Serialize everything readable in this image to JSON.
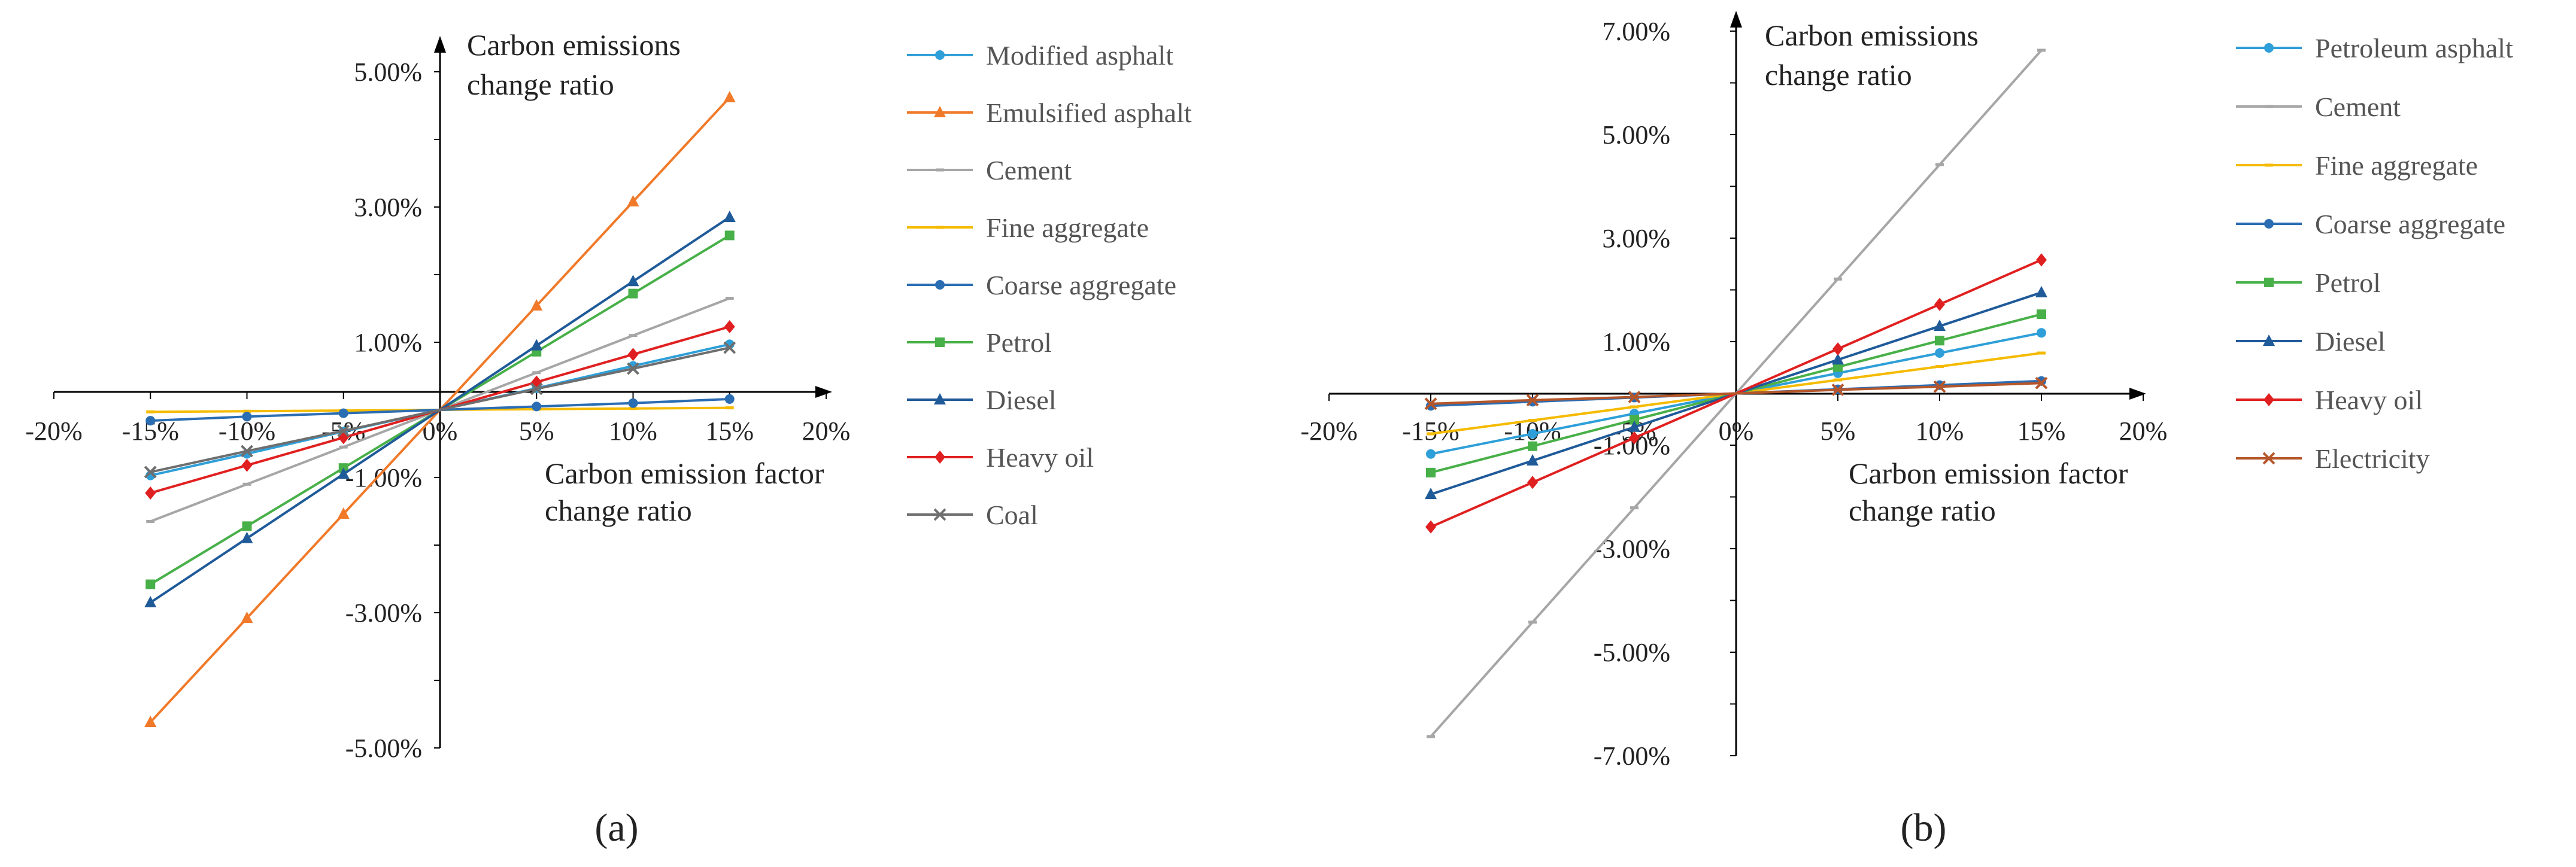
{
  "chart_data": [
    {
      "panel": "a",
      "type": "line",
      "panel_label": "(a)",
      "x": [
        -15,
        -10,
        -5,
        0,
        5,
        10,
        15
      ],
      "x_tick_labels": [
        "-20%",
        "-15%",
        "-10%",
        "-5%",
        "0%",
        "5%",
        "10%",
        "15%",
        "20%"
      ],
      "y_tick_labels": [
        "5.00%",
        "3.00%",
        "1.00%",
        "-1.00%",
        "-3.00%",
        "-5.00%"
      ],
      "xlim": [
        -20,
        20
      ],
      "ylim": [
        -5,
        5
      ],
      "xlabel": [
        "Carbon emission factor",
        "change ratio"
      ],
      "ylabel": [
        "Carbon emissions",
        "change ratio"
      ],
      "series": [
        {
          "name": "Modified asphalt",
          "color": "#2e9fd8",
          "marker": "circle",
          "values": [
            -0.97,
            -0.65,
            -0.32,
            0,
            0.32,
            0.65,
            0.97
          ]
        },
        {
          "name": "Emulsified asphalt",
          "color": "#f07a2a",
          "marker": "triangle",
          "values": [
            -4.62,
            -3.08,
            -1.54,
            0,
            1.54,
            3.08,
            4.62
          ]
        },
        {
          "name": "Cement",
          "color": "#a6a6a6",
          "marker": "dash",
          "values": [
            -1.65,
            -1.1,
            -0.55,
            0,
            0.55,
            1.1,
            1.65
          ]
        },
        {
          "name": "Fine aggregate",
          "color": "#f5bb00",
          "marker": "dash",
          "values": [
            -0.03,
            -0.02,
            -0.01,
            0,
            0.01,
            0.02,
            0.03
          ]
        },
        {
          "name": "Coarse aggregate",
          "color": "#2b6db3",
          "marker": "circle",
          "values": [
            -0.16,
            -0.1,
            -0.05,
            0,
            0.05,
            0.1,
            0.16
          ]
        },
        {
          "name": "Petrol",
          "color": "#48b048",
          "marker": "square",
          "values": [
            -2.58,
            -1.72,
            -0.86,
            0,
            0.86,
            1.72,
            2.58
          ]
        },
        {
          "name": "Diesel",
          "color": "#1f5a99",
          "marker": "triangle",
          "values": [
            -2.85,
            -1.9,
            -0.95,
            0,
            0.95,
            1.9,
            2.85
          ]
        },
        {
          "name": "Heavy oil",
          "color": "#e02020",
          "marker": "diamond",
          "values": [
            -1.23,
            -0.82,
            -0.41,
            0,
            0.41,
            0.82,
            1.23
          ]
        },
        {
          "name": "Coal",
          "color": "#6e6e6e",
          "marker": "x",
          "values": [
            -0.92,
            -0.61,
            -0.31,
            0,
            0.31,
            0.61,
            0.92
          ]
        }
      ]
    },
    {
      "panel": "b",
      "type": "line",
      "panel_label": "(b)",
      "x": [
        -15,
        -10,
        -5,
        0,
        5,
        10,
        15
      ],
      "x_tick_labels": [
        "-20%",
        "-15%",
        "-10%",
        "-5%",
        "0%",
        "5%",
        "10%",
        "15%",
        "20%"
      ],
      "y_tick_labels": [
        "7.00%",
        "5.00%",
        "3.00%",
        "1.00%",
        "-1.00%",
        "-3.00%",
        "-5.00%",
        "-7.00%"
      ],
      "xlim": [
        -20,
        20
      ],
      "ylim": [
        -7,
        7
      ],
      "xlabel": [
        "Carbon emission factor",
        "change ratio"
      ],
      "ylabel": [
        "Carbon emissions",
        "change ratio"
      ],
      "series": [
        {
          "name": "Petroleum asphalt",
          "color": "#2e9fd8",
          "marker": "circle",
          "values": [
            -1.17,
            -0.78,
            -0.39,
            0,
            0.39,
            0.78,
            1.17
          ]
        },
        {
          "name": "Cement",
          "color": "#a6a6a6",
          "marker": "dash",
          "values": [
            -6.63,
            -4.42,
            -2.21,
            0,
            2.21,
            4.42,
            6.63
          ]
        },
        {
          "name": "Fine aggregate",
          "color": "#f5bb00",
          "marker": "dash",
          "values": [
            -0.78,
            -0.52,
            -0.26,
            0,
            0.26,
            0.52,
            0.78
          ]
        },
        {
          "name": "Coarse aggregate",
          "color": "#2b6db3",
          "marker": "circle",
          "values": [
            -0.24,
            -0.16,
            -0.08,
            0,
            0.08,
            0.16,
            0.24
          ]
        },
        {
          "name": "Petrol",
          "color": "#48b048",
          "marker": "square",
          "values": [
            -1.53,
            -1.02,
            -0.51,
            0,
            0.51,
            1.02,
            1.53
          ]
        },
        {
          "name": "Diesel",
          "color": "#1f5a99",
          "marker": "triangle",
          "values": [
            -1.95,
            -1.3,
            -0.65,
            0,
            0.65,
            1.3,
            1.95
          ]
        },
        {
          "name": "Heavy oil",
          "color": "#e02020",
          "marker": "diamond",
          "values": [
            -2.58,
            -1.72,
            -0.86,
            0,
            0.86,
            1.72,
            2.58
          ]
        },
        {
          "name": "Electricity",
          "color": "#b5562a",
          "marker": "x",
          "values": [
            -0.2,
            -0.13,
            -0.07,
            0,
            0.07,
            0.13,
            0.2
          ]
        }
      ]
    }
  ]
}
